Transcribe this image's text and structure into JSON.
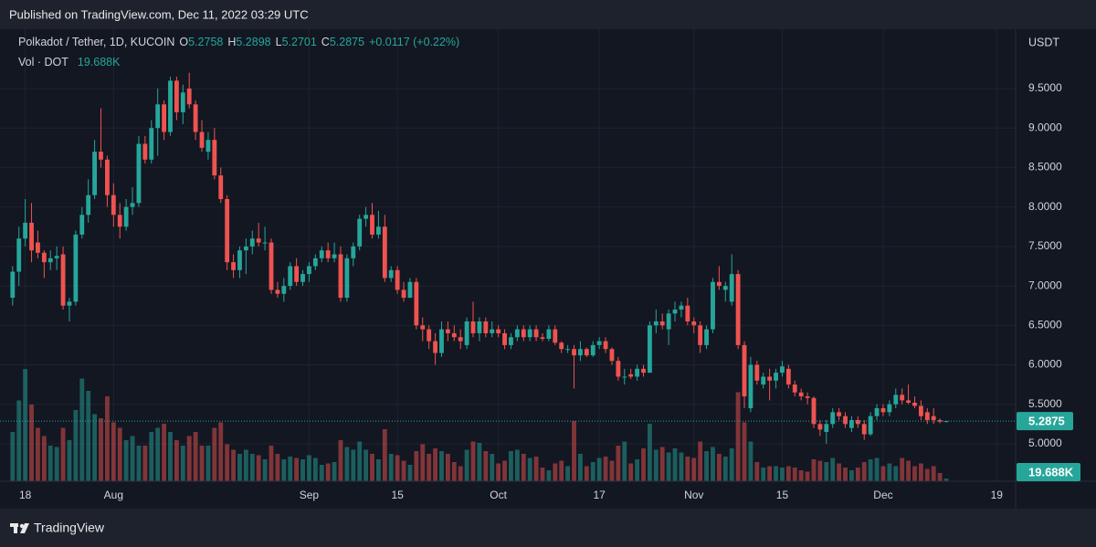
{
  "header": {
    "published": "Published on TradingView.com, Dec 11, 2022 03:29 UTC"
  },
  "chart_data": {
    "type": "candlestick",
    "title": "Polkadot / Tether, 1D, KUCOIN",
    "ohlc_labels": [
      "O",
      "H",
      "L",
      "C"
    ],
    "change_label": "+0.0117 (+0.22%)",
    "volume_title": "Vol · DOT",
    "volume_label": "19.688K",
    "currency": "USDT",
    "x": [
      "Jul 16",
      "Jul 17",
      "Jul 18",
      "Jul 19",
      "Jul 20",
      "Jul 21",
      "Jul 22",
      "Jul 23",
      "Jul 24",
      "Jul 25",
      "Jul 26",
      "Jul 27",
      "Jul 28",
      "Jul 29",
      "Jul 30",
      "Jul 31",
      "Aug 1",
      "Aug 2",
      "Aug 3",
      "Aug 4",
      "Aug 5",
      "Aug 6",
      "Aug 7",
      "Aug 8",
      "Aug 9",
      "Aug 10",
      "Aug 11",
      "Aug 12",
      "Aug 13",
      "Aug 14",
      "Aug 15",
      "Aug 16",
      "Aug 17",
      "Aug 18",
      "Aug 19",
      "Aug 20",
      "Aug 21",
      "Aug 22",
      "Aug 23",
      "Aug 24",
      "Aug 25",
      "Aug 26",
      "Aug 27",
      "Aug 28",
      "Aug 29",
      "Aug 30",
      "Aug 31",
      "Sep 1",
      "Sep 2",
      "Sep 3",
      "Sep 4",
      "Sep 5",
      "Sep 6",
      "Sep 7",
      "Sep 8",
      "Sep 9",
      "Sep 10",
      "Sep 11",
      "Sep 12",
      "Sep 13",
      "Sep 14",
      "Sep 15",
      "Sep 16",
      "Sep 17",
      "Sep 18",
      "Sep 19",
      "Sep 20",
      "Sep 21",
      "Sep 22",
      "Sep 23",
      "Sep 24",
      "Sep 25",
      "Sep 26",
      "Sep 27",
      "Sep 28",
      "Sep 29",
      "Sep 30",
      "Oct 1",
      "Oct 2",
      "Oct 3",
      "Oct 4",
      "Oct 5",
      "Oct 6",
      "Oct 7",
      "Oct 8",
      "Oct 9",
      "Oct 10",
      "Oct 11",
      "Oct 12",
      "Oct 13",
      "Oct 14",
      "Oct 15",
      "Oct 16",
      "Oct 17",
      "Oct 18",
      "Oct 19",
      "Oct 20",
      "Oct 21",
      "Oct 22",
      "Oct 23",
      "Oct 24",
      "Oct 25",
      "Oct 26",
      "Oct 27",
      "Oct 28",
      "Oct 29",
      "Oct 30",
      "Oct 31",
      "Nov 1",
      "Nov 2",
      "Nov 3",
      "Nov 4",
      "Nov 5",
      "Nov 6",
      "Nov 7",
      "Nov 8",
      "Nov 9",
      "Nov 10",
      "Nov 11",
      "Nov 12",
      "Nov 13",
      "Nov 14",
      "Nov 15",
      "Nov 16",
      "Nov 17",
      "Nov 18",
      "Nov 19",
      "Nov 20",
      "Nov 21",
      "Nov 22",
      "Nov 23",
      "Nov 24",
      "Nov 25",
      "Nov 26",
      "Nov 27",
      "Nov 28",
      "Nov 29",
      "Nov 30",
      "Dec 1",
      "Dec 2",
      "Dec 3",
      "Dec 4",
      "Dec 5",
      "Dec 6",
      "Dec 7",
      "Dec 8",
      "Dec 9",
      "Dec 10",
      "Dec 11"
    ],
    "open": [
      6.85,
      7.18,
      7.6,
      7.8,
      7.55,
      7.42,
      7.3,
      7.35,
      7.4,
      6.75,
      6.8,
      7.65,
      7.9,
      8.15,
      8.7,
      8.6,
      8.15,
      7.9,
      7.75,
      8.0,
      8.05,
      8.8,
      8.6,
      9.0,
      9.3,
      8.95,
      9.6,
      9.2,
      9.5,
      9.3,
      8.95,
      8.7,
      8.85,
      8.4,
      8.1,
      7.3,
      7.2,
      7.45,
      7.5,
      7.6,
      7.55,
      7.55,
      6.95,
      6.9,
      7.0,
      7.25,
      7.05,
      7.15,
      7.25,
      7.35,
      7.45,
      7.35,
      7.4,
      6.85,
      7.35,
      7.5,
      7.85,
      7.9,
      7.65,
      7.75,
      7.1,
      7.2,
      6.95,
      6.85,
      7.05,
      6.5,
      6.45,
      6.3,
      6.15,
      6.45,
      6.4,
      6.35,
      6.25,
      6.55,
      6.4,
      6.55,
      6.4,
      6.45,
      6.4,
      6.25,
      6.35,
      6.45,
      6.35,
      6.45,
      6.35,
      6.33,
      6.45,
      6.28,
      6.2,
      6.2,
      6.12,
      6.2,
      6.12,
      6.25,
      6.3,
      6.2,
      6.05,
      5.85,
      5.88,
      5.85,
      5.95,
      5.9,
      6.5,
      6.55,
      6.45,
      6.65,
      6.7,
      6.75,
      6.55,
      6.5,
      6.25,
      6.45,
      7.05,
      6.95,
      6.8,
      7.15,
      6.25,
      5.45,
      6.0,
      5.75,
      5.85,
      5.8,
      5.9,
      5.95,
      5.75,
      5.65,
      5.6,
      5.58,
      5.25,
      5.15,
      5.25,
      5.4,
      5.35,
      5.2,
      5.3,
      5.25,
      5.12,
      5.35,
      5.45,
      5.4,
      5.5,
      5.62,
      5.55,
      5.52,
      5.48,
      5.4,
      5.35,
      5.3,
      5.2758
    ],
    "high": [
      7.25,
      7.75,
      8.1,
      8.05,
      7.7,
      7.45,
      7.45,
      7.5,
      7.5,
      6.85,
      7.7,
      8.0,
      8.35,
      8.85,
      9.25,
      8.65,
      8.3,
      8.05,
      8.1,
      8.25,
      8.9,
      8.9,
      9.1,
      9.5,
      9.35,
      9.65,
      9.65,
      9.55,
      9.7,
      9.35,
      9.1,
      8.95,
      9.0,
      8.5,
      8.15,
      7.4,
      7.5,
      7.6,
      7.7,
      7.8,
      7.75,
      7.6,
      7.05,
      7.1,
      7.3,
      7.35,
      7.2,
      7.3,
      7.4,
      7.5,
      7.55,
      7.55,
      7.5,
      7.4,
      7.55,
      7.9,
      8.0,
      8.05,
      7.95,
      7.9,
      7.25,
      7.25,
      7.05,
      7.1,
      7.1,
      6.6,
      6.5,
      6.4,
      6.55,
      6.55,
      6.5,
      6.45,
      6.6,
      6.8,
      6.6,
      6.6,
      6.55,
      6.5,
      6.45,
      6.4,
      6.5,
      6.5,
      6.5,
      6.5,
      6.4,
      6.5,
      6.5,
      6.3,
      6.25,
      6.25,
      6.3,
      6.22,
      6.3,
      6.35,
      6.35,
      6.22,
      6.1,
      5.95,
      5.95,
      6.0,
      6.0,
      6.55,
      6.7,
      6.65,
      6.7,
      6.8,
      6.8,
      6.85,
      6.6,
      6.55,
      6.5,
      7.1,
      7.25,
      7.05,
      7.4,
      7.2,
      6.3,
      6.1,
      6.05,
      5.9,
      5.95,
      5.95,
      6.05,
      6.0,
      5.8,
      5.7,
      5.65,
      5.6,
      5.3,
      5.3,
      5.45,
      5.45,
      5.4,
      5.35,
      5.35,
      5.3,
      5.4,
      5.5,
      5.5,
      5.55,
      5.7,
      5.7,
      5.75,
      5.6,
      5.55,
      5.45,
      5.45,
      5.32,
      5.2898
    ],
    "low": [
      6.75,
      7.0,
      7.5,
      7.3,
      7.35,
      7.1,
      7.2,
      7.2,
      6.7,
      6.55,
      6.75,
      7.6,
      7.8,
      8.1,
      8.5,
      8.0,
      7.75,
      7.6,
      7.7,
      7.9,
      8.0,
      8.55,
      8.55,
      8.65,
      8.85,
      8.9,
      9.1,
      9.05,
      9.25,
      8.85,
      8.7,
      8.6,
      8.35,
      8.05,
      7.2,
      7.1,
      7.1,
      7.15,
      7.4,
      7.5,
      7.45,
      6.9,
      6.85,
      6.8,
      6.95,
      7.0,
      7.0,
      7.05,
      7.2,
      7.3,
      7.3,
      7.3,
      6.8,
      6.8,
      7.25,
      7.45,
      7.75,
      7.6,
      7.6,
      7.05,
      7.05,
      6.9,
      6.8,
      6.85,
      6.45,
      6.3,
      6.2,
      6.0,
      6.1,
      6.3,
      6.3,
      6.2,
      6.2,
      6.35,
      6.3,
      6.35,
      6.35,
      6.35,
      6.2,
      6.2,
      6.3,
      6.3,
      6.3,
      6.3,
      6.3,
      6.3,
      6.25,
      6.15,
      6.15,
      5.7,
      6.05,
      6.1,
      6.1,
      6.2,
      6.15,
      6.0,
      5.8,
      5.75,
      5.82,
      5.8,
      5.85,
      5.9,
      6.4,
      6.45,
      6.25,
      6.55,
      6.6,
      6.5,
      6.4,
      6.15,
      6.2,
      6.4,
      6.95,
      6.8,
      6.75,
      6.2,
      5.45,
      5.4,
      5.75,
      5.7,
      5.55,
      5.7,
      5.85,
      5.7,
      5.6,
      5.55,
      5.5,
      5.2,
      5.1,
      5.0,
      5.2,
      5.3,
      5.2,
      5.15,
      5.2,
      5.05,
      5.1,
      5.3,
      5.35,
      5.35,
      5.45,
      5.5,
      5.5,
      5.45,
      5.3,
      5.25,
      5.25,
      5.26,
      5.2701
    ],
    "close": [
      7.18,
      7.6,
      7.8,
      7.45,
      7.42,
      7.3,
      7.35,
      7.38,
      6.75,
      6.8,
      7.65,
      7.9,
      8.15,
      8.7,
      8.6,
      8.15,
      7.9,
      7.75,
      8.0,
      8.05,
      8.8,
      8.6,
      9.0,
      9.3,
      8.95,
      9.6,
      9.2,
      9.45,
      9.3,
      8.95,
      8.75,
      8.85,
      8.4,
      8.1,
      7.3,
      7.2,
      7.45,
      7.5,
      7.6,
      7.55,
      7.55,
      6.95,
      6.9,
      7.0,
      7.25,
      7.05,
      7.15,
      7.25,
      7.35,
      7.45,
      7.35,
      7.4,
      6.85,
      7.35,
      7.5,
      7.85,
      7.9,
      7.65,
      7.75,
      7.1,
      7.2,
      6.95,
      6.85,
      7.05,
      6.5,
      6.45,
      6.3,
      6.15,
      6.45,
      6.4,
      6.35,
      6.3,
      6.55,
      6.4,
      6.55,
      6.4,
      6.45,
      6.4,
      6.25,
      6.35,
      6.45,
      6.35,
      6.45,
      6.35,
      6.33,
      6.45,
      6.28,
      6.2,
      6.2,
      6.12,
      6.2,
      6.12,
      6.25,
      6.3,
      6.2,
      6.05,
      5.85,
      5.85,
      5.85,
      5.95,
      5.9,
      6.5,
      6.55,
      6.5,
      6.65,
      6.7,
      6.75,
      6.55,
      6.5,
      6.25,
      6.45,
      7.05,
      7.0,
      7.0,
      7.15,
      6.25,
      5.6,
      6.0,
      5.8,
      5.85,
      5.8,
      5.9,
      5.98,
      5.75,
      5.65,
      5.6,
      5.58,
      5.25,
      5.18,
      5.25,
      5.4,
      5.35,
      5.25,
      5.3,
      5.25,
      5.12,
      5.35,
      5.45,
      5.4,
      5.5,
      5.62,
      5.55,
      5.52,
      5.48,
      5.35,
      5.3,
      5.3,
      5.28,
      5.2875
    ],
    "volume": [
      360000,
      590000,
      820000,
      560000,
      390000,
      330000,
      260000,
      250000,
      390000,
      300000,
      520000,
      750000,
      660000,
      490000,
      460000,
      620000,
      430000,
      390000,
      300000,
      330000,
      260000,
      260000,
      360000,
      390000,
      420000,
      360000,
      300000,
      260000,
      330000,
      360000,
      260000,
      260000,
      390000,
      430000,
      270000,
      230000,
      200000,
      230000,
      200000,
      190000,
      160000,
      260000,
      200000,
      160000,
      180000,
      170000,
      160000,
      190000,
      170000,
      120000,
      130000,
      140000,
      300000,
      250000,
      230000,
      290000,
      230000,
      200000,
      160000,
      380000,
      200000,
      190000,
      150000,
      120000,
      220000,
      270000,
      200000,
      240000,
      220000,
      200000,
      140000,
      110000,
      230000,
      290000,
      280000,
      220000,
      200000,
      130000,
      150000,
      220000,
      230000,
      200000,
      170000,
      180000,
      100000,
      80000,
      130000,
      150000,
      110000,
      440000,
      200000,
      110000,
      140000,
      170000,
      180000,
      150000,
      260000,
      290000,
      130000,
      160000,
      240000,
      420000,
      230000,
      250000,
      210000,
      240000,
      210000,
      180000,
      170000,
      290000,
      220000,
      250000,
      200000,
      180000,
      240000,
      650000,
      430000,
      290000,
      140000,
      100000,
      110000,
      110000,
      100000,
      110000,
      100000,
      80000,
      70000,
      160000,
      150000,
      140000,
      170000,
      130000,
      100000,
      80000,
      100000,
      140000,
      160000,
      170000,
      110000,
      130000,
      110000,
      170000,
      150000,
      110000,
      130000,
      90000,
      110000,
      60000,
      19688
    ],
    "up_color": "#26a69a",
    "down_color": "#ef5350",
    "ylim": [
      4.525,
      10.252
    ],
    "yticks": [
      {
        "value": 5,
        "label": "5.0000"
      },
      {
        "value": 5.5,
        "label": "5.5000"
      },
      {
        "value": 6,
        "label": "6.0000"
      },
      {
        "value": 6.5,
        "label": "6.5000"
      },
      {
        "value": 7,
        "label": "7.0000"
      },
      {
        "value": 7.5,
        "label": "7.5000"
      },
      {
        "value": 8,
        "label": "8.0000"
      },
      {
        "value": 8.5,
        "label": "8.5000"
      },
      {
        "value": 9,
        "label": "9.0000"
      },
      {
        "value": 9.5,
        "label": "9.5000"
      }
    ],
    "xlim": [
      "Jul 14",
      "Dec 22"
    ],
    "xticks": [
      {
        "value": "Jul 18",
        "label": "18"
      },
      {
        "value": "Aug 1",
        "label": "Aug"
      },
      {
        "value": "Sep 1",
        "label": "Sep"
      },
      {
        "value": "Sep 15",
        "label": "15"
      },
      {
        "value": "Oct 1",
        "label": "Oct"
      },
      {
        "value": "Oct 17",
        "label": "17"
      },
      {
        "value": "Nov 1",
        "label": "Nov"
      },
      {
        "value": "Nov 15",
        "label": "15"
      },
      {
        "value": "Dec 1",
        "label": "Dec"
      },
      {
        "value": "Dec 19",
        "label": "19"
      }
    ],
    "volume_lim": [
      0,
      3300000
    ],
    "grid": true
  },
  "footer": {
    "brand": "TradingView"
  }
}
